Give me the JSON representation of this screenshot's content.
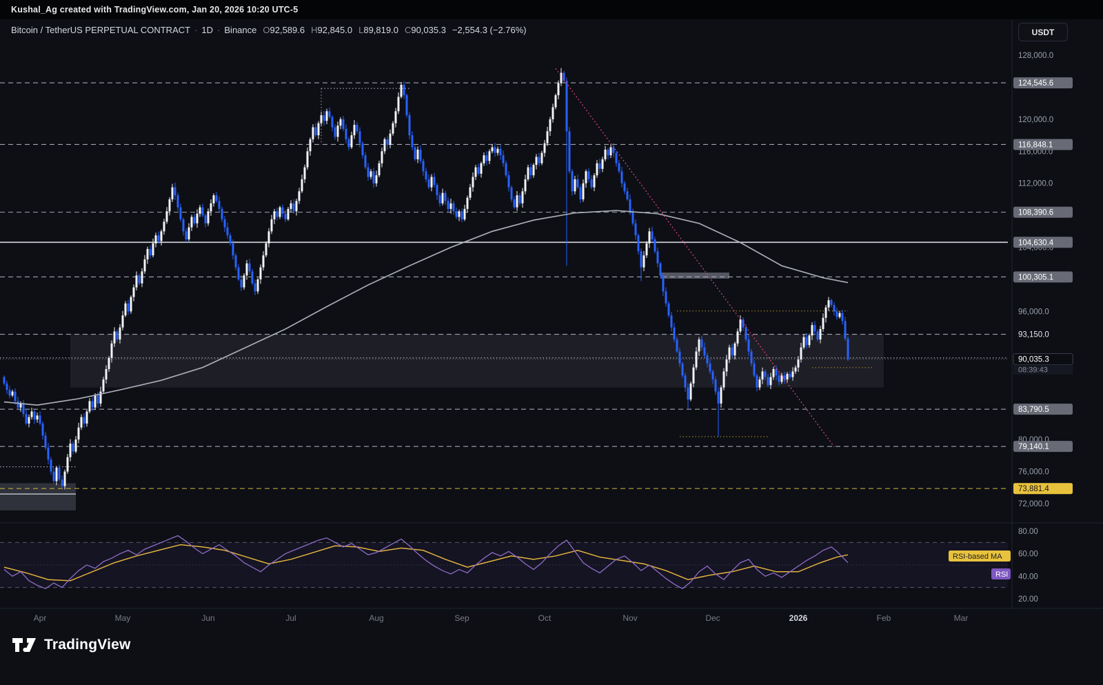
{
  "attribution": {
    "text": "Kushal_Ag created with TradingView.com, Jan 20, 2026 10:20 UTC-5"
  },
  "header": {
    "symbol_title": "Bitcoin / TetherUS PERPETUAL CONTRACT",
    "separator": "·",
    "interval": "1D",
    "exchange": "Binance",
    "change": "−2,554.3 (−2.76%)"
  },
  "toolbar": {
    "currency_label": "USDT"
  },
  "footer": {
    "brand": "TradingView"
  },
  "chart_data": {
    "type": "candlestick",
    "symbol": "Bitcoin / TetherUS PERPETUAL CONTRACT",
    "interval": "1D",
    "exchange": "Binance",
    "ohlc_tokens": [
      {
        "k": "O",
        "v": "92,589.6"
      },
      {
        "k": "H",
        "v": "92,845.0"
      },
      {
        "k": "L",
        "v": "89,819.0"
      },
      {
        "k": "C",
        "v": "90,035.3"
      }
    ],
    "current": {
      "open": 92589.6,
      "high": 92845.0,
      "low": 89819.0,
      "close": 90035.3,
      "change": -2554.3,
      "change_pct": -2.76,
      "label": "90,035.3",
      "countdown": "08:39:43"
    },
    "colors": {
      "up": "#f2f4f8",
      "down": "#2962ff",
      "ma": "#b2b5be",
      "trendline": "#e0447c",
      "level": "#b7bac4",
      "yellow": "#d6b93c",
      "rsi": "#8e6cc9",
      "rsi_ma": "#e3b341"
    },
    "open_first_k": 87.8,
    "closes_k": [
      87.0,
      86.2,
      85.5,
      86.0,
      84.8,
      84.0,
      84.5,
      83.2,
      82.0,
      82.8,
      83.5,
      82.5,
      83.0,
      82.0,
      80.5,
      79.0,
      77.5,
      76.0,
      74.8,
      76.5,
      75.0,
      74.2,
      76.0,
      77.8,
      79.5,
      78.5,
      80.0,
      81.5,
      82.8,
      82.0,
      83.5,
      84.8,
      84.0,
      85.5,
      84.5,
      86.0,
      87.5,
      88.8,
      90.2,
      92.0,
      93.5,
      92.5,
      94.0,
      95.5,
      97.0,
      96.0,
      97.8,
      99.0,
      100.5,
      99.5,
      101.0,
      102.5,
      103.8,
      103.0,
      104.5,
      105.5,
      104.8,
      106.0,
      107.2,
      108.5,
      110.0,
      111.5,
      110.5,
      109.0,
      107.5,
      106.0,
      105.0,
      106.5,
      107.8,
      107.0,
      108.2,
      109.0,
      108.0,
      107.0,
      108.5,
      109.5,
      110.5,
      109.8,
      108.8,
      107.5,
      106.5,
      105.5,
      104.5,
      103.0,
      101.5,
      100.0,
      99.0,
      100.5,
      102.0,
      101.0,
      99.5,
      98.5,
      100.0,
      101.5,
      103.0,
      104.5,
      106.0,
      107.5,
      108.5,
      107.8,
      109.0,
      108.2,
      107.5,
      108.8,
      109.5,
      108.5,
      109.8,
      111.0,
      112.5,
      114.0,
      116.0,
      117.5,
      119.0,
      118.0,
      119.5,
      120.5,
      119.8,
      121.0,
      120.3,
      119.0,
      117.8,
      119.2,
      120.0,
      118.8,
      117.5,
      116.5,
      118.0,
      119.3,
      118.5,
      117.0,
      115.5,
      114.0,
      112.8,
      113.5,
      112.0,
      113.0,
      114.5,
      116.0,
      117.5,
      116.8,
      118.2,
      119.5,
      121.0,
      122.8,
      124.3,
      123.0,
      120.5,
      118.0,
      116.5,
      115.0,
      116.2,
      114.8,
      113.5,
      112.5,
      111.5,
      112.8,
      111.8,
      110.5,
      109.5,
      110.8,
      109.8,
      108.8,
      109.5,
      108.5,
      107.8,
      108.5,
      107.5,
      108.8,
      110.2,
      111.5,
      112.8,
      114.0,
      113.2,
      114.5,
      115.5,
      114.8,
      116.0,
      116.5,
      115.8,
      116.3,
      115.5,
      114.5,
      113.0,
      111.5,
      110.0,
      109.0,
      110.5,
      109.5,
      111.0,
      112.5,
      114.0,
      113.0,
      114.3,
      115.3,
      114.5,
      115.8,
      117.0,
      118.5,
      120.0,
      121.5,
      123.0,
      124.5,
      125.8,
      124.8,
      118.5,
      113.5,
      111.0,
      112.5,
      111.5,
      110.0,
      112.0,
      113.5,
      112.5,
      111.5,
      113.0,
      114.5,
      113.8,
      115.0,
      116.2,
      115.5,
      116.5,
      115.8,
      114.5,
      113.5,
      112.0,
      111.0,
      110.0,
      108.5,
      107.0,
      105.5,
      103.5,
      101.5,
      103.0,
      104.5,
      106.0,
      105.0,
      103.5,
      102.0,
      100.5,
      98.5,
      97.0,
      95.5,
      94.0,
      92.5,
      91.0,
      89.5,
      88.0,
      86.5,
      85.0,
      87.0,
      89.0,
      91.0,
      92.5,
      91.5,
      90.5,
      89.5,
      88.5,
      87.5,
      86.0,
      84.5,
      86.5,
      88.5,
      90.0,
      91.5,
      90.5,
      92.0,
      93.5,
      95.0,
      94.0,
      92.5,
      91.0,
      89.5,
      88.0,
      86.5,
      87.5,
      88.5,
      87.8,
      86.8,
      87.8,
      88.8,
      88.0,
      87.2,
      88.0,
      87.5,
      88.2,
      87.8,
      88.5,
      89.0,
      90.0,
      91.5,
      92.8,
      91.8,
      93.0,
      94.3,
      93.5,
      92.5,
      93.8,
      95.2,
      96.5,
      97.4,
      96.8,
      96.0,
      95.3,
      95.8,
      94.8,
      92.6,
      90.0353
    ],
    "candle_overrides": {
      "21": {
        "l": 73.9
      },
      "144": {
        "h": 124.65
      },
      "202": {
        "h": 126.4
      },
      "204": {
        "l": 101.7
      },
      "231": {
        "l": 99.8
      },
      "248": {
        "l": 83.8
      },
      "259": {
        "l": 80.4
      },
      "299": {
        "h": 97.8
      },
      "306": {
        "o": 92.5896,
        "h": 92.845,
        "l": 89.819,
        "c": 90.0353
      }
    },
    "ma_trend": {
      "name": "long-term moving average",
      "points_k": [
        [
          0,
          84.7
        ],
        [
          12,
          84.3
        ],
        [
          27,
          85.1
        ],
        [
          42,
          86.2
        ],
        [
          57,
          87.4
        ],
        [
          72,
          89.0
        ],
        [
          87,
          91.4
        ],
        [
          102,
          93.8
        ],
        [
          117,
          96.6
        ],
        [
          132,
          99.3
        ],
        [
          147,
          101.7
        ],
        [
          162,
          104.0
        ],
        [
          177,
          106.0
        ],
        [
          192,
          107.4
        ],
        [
          207,
          108.3
        ],
        [
          222,
          108.6
        ],
        [
          237,
          108.2
        ],
        [
          252,
          107.0
        ],
        [
          267,
          104.6
        ],
        [
          282,
          101.7
        ],
        [
          297,
          100.2
        ],
        [
          306,
          99.6
        ]
      ]
    },
    "trendline": {
      "i1": 200,
      "p1": 126350,
      "i2": 301,
      "p2": 79100
    },
    "levels": [
      {
        "price": 124545.6,
        "label": "124,545.6",
        "style": "dashed",
        "badge": "gray"
      },
      {
        "price": 116848.1,
        "label": "116,848.1",
        "style": "dashed",
        "badge": "gray"
      },
      {
        "price": 108390.6,
        "label": "108,390.6",
        "style": "dashed",
        "badge": "gray"
      },
      {
        "price": 104630.4,
        "label": "104,630.4",
        "style": "solid",
        "badge": "gray",
        "color": "#e6e8ee",
        "width": 1.8
      },
      {
        "price": 100305.1,
        "label": "100,305.1",
        "style": "dashed",
        "badge": "gray"
      },
      {
        "price": 93150.0,
        "label": "93,150.0",
        "style": "dashed",
        "badge": "plain"
      },
      {
        "price": 90200.0,
        "label": "90,200.0",
        "style": "dotted",
        "badge": "plain",
        "color": "#c9ccd4"
      },
      {
        "price": 83790.5,
        "label": "83,790.5",
        "style": "dashed",
        "badge": "gray"
      },
      {
        "price": 79140.1,
        "label": "79,140.1",
        "style": "dashed",
        "badge": "gray"
      },
      {
        "price": 73881.4,
        "label": "73,881.4",
        "style": "dashed",
        "badge": "yellow",
        "color": "#d6b93c"
      }
    ],
    "segments": [
      {
        "price": 96060,
        "i1": 244,
        "i2": 306,
        "style": "dotted",
        "color": "#a08527"
      },
      {
        "price": 80360,
        "i1": 245,
        "i2": 277,
        "style": "dotted",
        "color": "#a08527"
      },
      {
        "price": 88980,
        "i1": 293,
        "i2": 315,
        "style": "dotted",
        "color": "#c08a2d"
      },
      {
        "price": 123850,
        "i1": 115,
        "i2": 147,
        "style": "dotted",
        "color": "#b2b5be"
      },
      {
        "price": 73200,
        "i1": -2,
        "i2": 26,
        "style": "solid",
        "color": "#dfe2e8"
      },
      {
        "price": 76600,
        "i1": -2,
        "i2": 26,
        "style": "dotted",
        "color": "#b2b5be"
      }
    ],
    "vsegments": [
      {
        "i": 115,
        "p1": 123850,
        "p2": 116848,
        "style": "dotted",
        "color": "#b2b5be"
      }
    ],
    "zones": [
      {
        "i1": 24,
        "i2": 319,
        "p_top": 93150,
        "p_bot": 86500,
        "fill": "rgba(125,131,145,0.14)"
      },
      {
        "i1": 238,
        "i2": 263,
        "p_top": 100850,
        "p_bot": 100100,
        "fill": "rgba(145,150,163,0.55)"
      },
      {
        "i1": -2,
        "i2": 26,
        "p_top": 74550,
        "p_bot": 71150,
        "fill": "rgba(125,131,145,0.30)"
      }
    ],
    "price_ticks": [
      {
        "label": "128,000.0",
        "price": 128000
      },
      {
        "label": "120,000.0",
        "price": 120000
      },
      {
        "label": "116,000.0",
        "price": 116000
      },
      {
        "label": "112,000.0",
        "price": 112000
      },
      {
        "label": "104,000.0",
        "price": 104000
      },
      {
        "label": "96,000.0",
        "price": 96000
      },
      {
        "label": "80,000.0",
        "price": 80000
      },
      {
        "label": "76,000.0",
        "price": 76000
      },
      {
        "label": "72,000.0",
        "price": 72000
      }
    ],
    "months": [
      {
        "label": "Apr",
        "i": 13
      },
      {
        "label": "May",
        "i": 43
      },
      {
        "label": "Jun",
        "i": 74
      },
      {
        "label": "Jul",
        "i": 104
      },
      {
        "label": "Aug",
        "i": 135
      },
      {
        "label": "Sep",
        "i": 166
      },
      {
        "label": "Oct",
        "i": 196
      },
      {
        "label": "Nov",
        "i": 227
      },
      {
        "label": "Dec",
        "i": 257
      },
      {
        "label": "2026",
        "i": 288,
        "major": true
      },
      {
        "label": "Feb",
        "i": 319
      },
      {
        "label": "Mar",
        "i": 347
      }
    ],
    "rsi": {
      "labels": {
        "ma_badge": "RSI-based MA",
        "rsi_badge": "RSI"
      },
      "tick_labels": [
        {
          "label": "80.00",
          "v": 80
        },
        {
          "label": "60.00",
          "v": 60
        },
        {
          "label": "40.00",
          "v": 40
        },
        {
          "label": "20.00",
          "v": 20
        }
      ],
      "band_lines": [
        70,
        30
      ],
      "mid_line": 50,
      "series": [
        [
          0,
          46
        ],
        [
          3,
          40
        ],
        [
          6,
          44
        ],
        [
          9,
          36
        ],
        [
          12,
          32
        ],
        [
          15,
          29
        ],
        [
          18,
          34
        ],
        [
          21,
          30
        ],
        [
          24,
          38
        ],
        [
          27,
          45
        ],
        [
          30,
          50
        ],
        [
          33,
          47
        ],
        [
          36,
          53
        ],
        [
          39,
          56
        ],
        [
          42,
          60
        ],
        [
          45,
          63
        ],
        [
          48,
          59
        ],
        [
          51,
          64
        ],
        [
          54,
          67
        ],
        [
          57,
          70
        ],
        [
          60,
          73
        ],
        [
          63,
          76
        ],
        [
          66,
          71
        ],
        [
          69,
          65
        ],
        [
          72,
          60
        ],
        [
          75,
          64
        ],
        [
          78,
          68
        ],
        [
          81,
          63
        ],
        [
          84,
          58
        ],
        [
          87,
          52
        ],
        [
          90,
          48
        ],
        [
          93,
          44
        ],
        [
          96,
          50
        ],
        [
          99,
          55
        ],
        [
          102,
          60
        ],
        [
          105,
          63
        ],
        [
          108,
          66
        ],
        [
          111,
          69
        ],
        [
          114,
          72
        ],
        [
          117,
          74
        ],
        [
          120,
          70
        ],
        [
          123,
          66
        ],
        [
          126,
          69
        ],
        [
          129,
          64
        ],
        [
          132,
          59
        ],
        [
          135,
          61
        ],
        [
          138,
          65
        ],
        [
          141,
          69
        ],
        [
          144,
          73
        ],
        [
          147,
          67
        ],
        [
          150,
          60
        ],
        [
          153,
          54
        ],
        [
          156,
          49
        ],
        [
          159,
          45
        ],
        [
          162,
          42
        ],
        [
          165,
          46
        ],
        [
          168,
          43
        ],
        [
          171,
          50
        ],
        [
          174,
          56
        ],
        [
          177,
          61
        ],
        [
          180,
          58
        ],
        [
          183,
          62
        ],
        [
          186,
          57
        ],
        [
          189,
          51
        ],
        [
          192,
          46
        ],
        [
          195,
          52
        ],
        [
          198,
          60
        ],
        [
          201,
          67
        ],
        [
          204,
          72
        ],
        [
          207,
          62
        ],
        [
          210,
          52
        ],
        [
          213,
          47
        ],
        [
          216,
          43
        ],
        [
          219,
          49
        ],
        [
          222,
          55
        ],
        [
          225,
          58
        ],
        [
          228,
          52
        ],
        [
          231,
          45
        ],
        [
          234,
          50
        ],
        [
          237,
          44
        ],
        [
          240,
          38
        ],
        [
          243,
          33
        ],
        [
          246,
          29
        ],
        [
          249,
          35
        ],
        [
          252,
          44
        ],
        [
          255,
          49
        ],
        [
          258,
          42
        ],
        [
          261,
          37
        ],
        [
          264,
          45
        ],
        [
          267,
          52
        ],
        [
          270,
          55
        ],
        [
          273,
          46
        ],
        [
          276,
          40
        ],
        [
          279,
          43
        ],
        [
          282,
          39
        ],
        [
          285,
          44
        ],
        [
          288,
          49
        ],
        [
          291,
          54
        ],
        [
          294,
          58
        ],
        [
          297,
          63
        ],
        [
          300,
          66
        ],
        [
          302,
          62
        ],
        [
          304,
          57
        ],
        [
          306,
          52
        ]
      ],
      "ma": [
        [
          0,
          48
        ],
        [
          8,
          43
        ],
        [
          16,
          37
        ],
        [
          24,
          36
        ],
        [
          32,
          44
        ],
        [
          40,
          52
        ],
        [
          48,
          58
        ],
        [
          56,
          63
        ],
        [
          64,
          68
        ],
        [
          72,
          66
        ],
        [
          80,
          63
        ],
        [
          88,
          57
        ],
        [
          96,
          51
        ],
        [
          104,
          55
        ],
        [
          112,
          61
        ],
        [
          120,
          67
        ],
        [
          128,
          66
        ],
        [
          136,
          62
        ],
        [
          144,
          65
        ],
        [
          152,
          63
        ],
        [
          160,
          55
        ],
        [
          168,
          48
        ],
        [
          176,
          53
        ],
        [
          184,
          58
        ],
        [
          192,
          55
        ],
        [
          200,
          58
        ],
        [
          208,
          63
        ],
        [
          216,
          57
        ],
        [
          224,
          54
        ],
        [
          232,
          51
        ],
        [
          240,
          45
        ],
        [
          248,
          37
        ],
        [
          256,
          41
        ],
        [
          264,
          44
        ],
        [
          272,
          49
        ],
        [
          280,
          44
        ],
        [
          288,
          44
        ],
        [
          296,
          52
        ],
        [
          302,
          57
        ],
        [
          306,
          59
        ]
      ]
    }
  }
}
